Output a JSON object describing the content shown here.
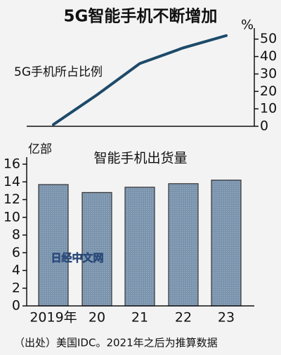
{
  "title": "5G智能手机不断增加",
  "chart_data": [
    {
      "type": "line",
      "label": "5G手机所占比例",
      "unit": "%",
      "values": [
        1,
        18,
        36,
        45,
        52
      ],
      "color": "#1d4a6a",
      "ylim": [
        0,
        55
      ],
      "yticks": [
        0,
        10,
        20,
        30,
        40,
        50
      ]
    },
    {
      "type": "bar",
      "title": "智能手机出货量",
      "unit": "亿部",
      "categories": [
        "2019年",
        "20",
        "21",
        "22",
        "23"
      ],
      "values": [
        13.7,
        12.8,
        13.4,
        13.8,
        14.2
      ],
      "color": "#7b94ae",
      "ylim": [
        0,
        16
      ],
      "yticks": [
        0,
        2,
        4,
        6,
        8,
        10,
        12,
        14,
        16
      ]
    }
  ],
  "watermark": "日经中文网",
  "source": "（出处）美国IDC。2021年之后为推算数据"
}
